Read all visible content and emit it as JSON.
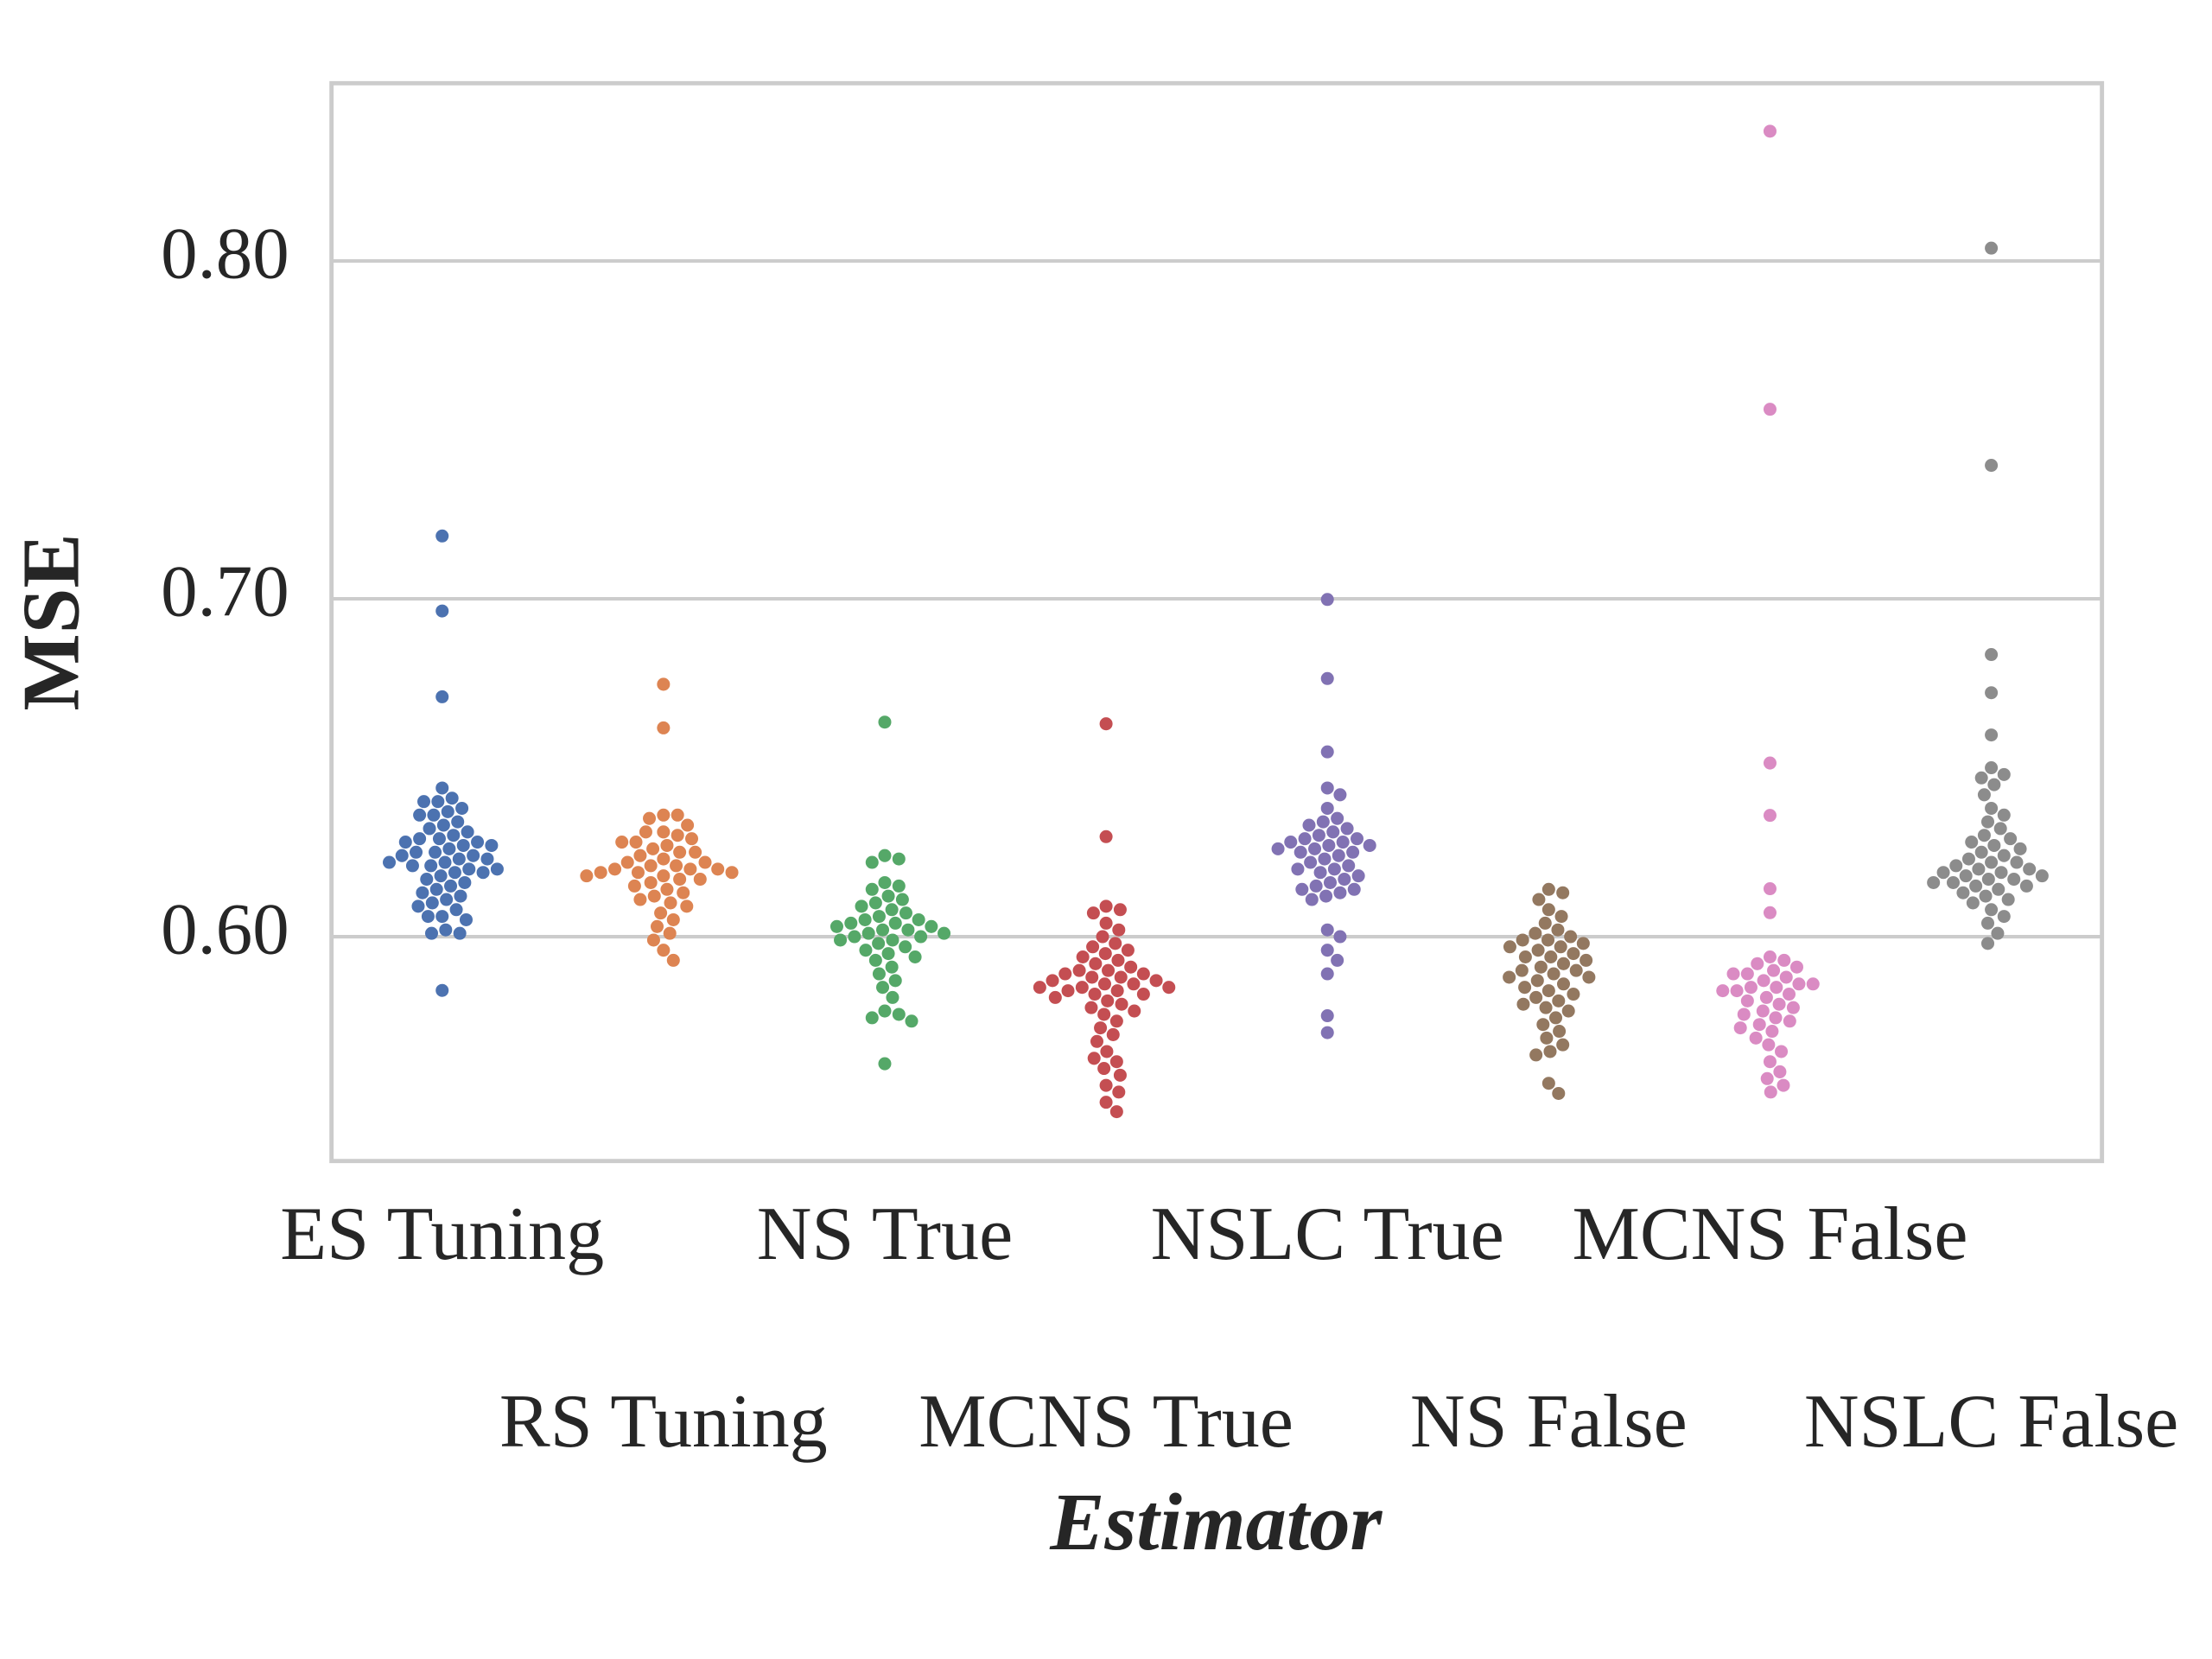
{
  "chart_data": {
    "type": "swarm",
    "x_label": "Estimator",
    "y_label": "MSE",
    "categories": [
      "ES Tuning",
      "RS Tuning",
      "NS True",
      "MCNS True",
      "NSLC True",
      "NS False",
      "MCNS False",
      "NSLC False"
    ],
    "colors": [
      "#4c72b0",
      "#dd8452",
      "#55a868",
      "#c44e52",
      "#8172b3",
      "#937860",
      "#da8bc3",
      "#8c8c8c"
    ],
    "values": [
      [
        0.7186,
        0.6964,
        0.671,
        0.5841,
        0.644,
        0.641,
        0.64,
        0.64,
        0.638,
        0.637,
        0.636,
        0.636,
        0.634,
        0.633,
        0.632,
        0.631,
        0.63,
        0.629,
        0.629,
        0.628,
        0.628,
        0.627,
        0.627,
        0.626,
        0.625,
        0.625,
        0.624,
        0.624,
        0.623,
        0.623,
        0.622,
        0.622,
        0.621,
        0.621,
        0.62,
        0.62,
        0.619,
        0.619,
        0.618,
        0.617,
        0.616,
        0.615,
        0.614,
        0.613,
        0.612,
        0.611,
        0.61,
        0.609,
        0.608,
        0.606,
        0.606,
        0.605,
        0.602,
        0.601,
        0.601
      ],
      [
        0.6747,
        0.6618,
        0.636,
        0.636,
        0.635,
        0.633,
        0.631,
        0.631,
        0.63,
        0.629,
        0.628,
        0.628,
        0.627,
        0.626,
        0.625,
        0.625,
        0.624,
        0.623,
        0.622,
        0.622,
        0.621,
        0.621,
        0.62,
        0.62,
        0.62,
        0.619,
        0.619,
        0.619,
        0.618,
        0.618,
        0.617,
        0.617,
        0.616,
        0.615,
        0.614,
        0.613,
        0.612,
        0.611,
        0.61,
        0.609,
        0.607,
        0.605,
        0.603,
        0.601,
        0.599,
        0.596,
        0.593
      ],
      [
        0.6635,
        0.624,
        0.623,
        0.622,
        0.616,
        0.615,
        0.614,
        0.612,
        0.611,
        0.61,
        0.609,
        0.608,
        0.607,
        0.606,
        0.605,
        0.605,
        0.604,
        0.604,
        0.603,
        0.603,
        0.602,
        0.602,
        0.601,
        0.601,
        0.6,
        0.6,
        0.599,
        0.599,
        0.598,
        0.597,
        0.596,
        0.595,
        0.594,
        0.593,
        0.591,
        0.589,
        0.587,
        0.585,
        0.582,
        0.578,
        0.577,
        0.576,
        0.575,
        0.5624
      ],
      [
        0.663,
        0.6296,
        0.609,
        0.608,
        0.607,
        0.604,
        0.602,
        0.6,
        0.598,
        0.597,
        0.596,
        0.595,
        0.594,
        0.593,
        0.592,
        0.591,
        0.59,
        0.59,
        0.589,
        0.589,
        0.588,
        0.588,
        0.587,
        0.587,
        0.586,
        0.586,
        0.585,
        0.585,
        0.585,
        0.584,
        0.584,
        0.583,
        0.583,
        0.582,
        0.581,
        0.58,
        0.579,
        0.578,
        0.577,
        0.575,
        0.573,
        0.571,
        0.569,
        0.566,
        0.564,
        0.563,
        0.561,
        0.559,
        0.556,
        0.554,
        0.551,
        0.5482
      ],
      [
        0.6998,
        0.6764,
        0.6547,
        0.644,
        0.642,
        0.638,
        0.635,
        0.634,
        0.633,
        0.632,
        0.631,
        0.63,
        0.629,
        0.629,
        0.628,
        0.628,
        0.627,
        0.627,
        0.626,
        0.626,
        0.625,
        0.625,
        0.624,
        0.623,
        0.622,
        0.621,
        0.62,
        0.62,
        0.619,
        0.618,
        0.617,
        0.616,
        0.615,
        0.614,
        0.614,
        0.613,
        0.612,
        0.611,
        0.602,
        0.6,
        0.596,
        0.593,
        0.589,
        0.5766,
        0.5716
      ],
      [
        0.614,
        0.613,
        0.611,
        0.608,
        0.606,
        0.604,
        0.602,
        0.601,
        0.6,
        0.599,
        0.599,
        0.598,
        0.597,
        0.597,
        0.596,
        0.595,
        0.594,
        0.594,
        0.593,
        0.592,
        0.591,
        0.59,
        0.59,
        0.589,
        0.588,
        0.588,
        0.587,
        0.586,
        0.585,
        0.584,
        0.583,
        0.582,
        0.581,
        0.58,
        0.579,
        0.578,
        0.576,
        0.574,
        0.572,
        0.57,
        0.568,
        0.566,
        0.565,
        0.5566,
        0.5536
      ],
      [
        0.8384,
        0.7561,
        0.6514,
        0.6359,
        0.6142,
        0.6071,
        0.594,
        0.593,
        0.592,
        0.591,
        0.59,
        0.589,
        0.589,
        0.588,
        0.587,
        0.586,
        0.586,
        0.585,
        0.585,
        0.584,
        0.584,
        0.583,
        0.582,
        0.581,
        0.58,
        0.579,
        0.578,
        0.577,
        0.576,
        0.575,
        0.574,
        0.573,
        0.572,
        0.57,
        0.568,
        0.566,
        0.563,
        0.56,
        0.558,
        0.556,
        0.554
      ],
      [
        0.8038,
        0.7395,
        0.6835,
        0.6722,
        0.6597,
        0.65,
        0.648,
        0.647,
        0.645,
        0.642,
        0.638,
        0.636,
        0.634,
        0.632,
        0.63,
        0.629,
        0.628,
        0.627,
        0.626,
        0.625,
        0.624,
        0.623,
        0.622,
        0.622,
        0.621,
        0.62,
        0.62,
        0.619,
        0.619,
        0.618,
        0.618,
        0.617,
        0.617,
        0.616,
        0.616,
        0.615,
        0.615,
        0.614,
        0.613,
        0.612,
        0.611,
        0.61,
        0.608,
        0.606,
        0.604,
        0.601,
        0.598
      ]
    ],
    "ylim": [
      0.5336,
      0.8526
    ],
    "yticks": [
      {
        "value": 0.6,
        "label": "0.60"
      },
      {
        "value": 0.7,
        "label": "0.70"
      },
      {
        "value": 0.8,
        "label": "0.80"
      }
    ],
    "grid": true
  }
}
